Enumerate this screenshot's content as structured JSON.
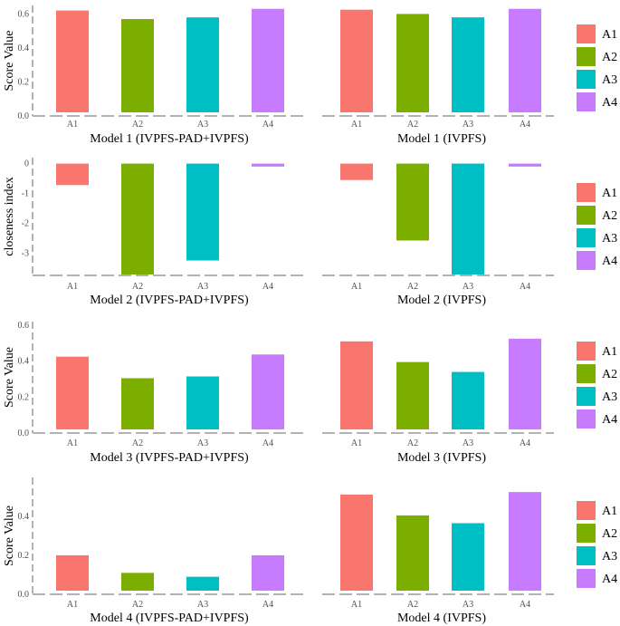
{
  "chart_data": [
    {
      "type": "bar",
      "ylabel": "Score Value",
      "ylim": [
        0,
        0.65
      ],
      "yticks": [
        "0.0",
        "0.2",
        "0.4",
        "0.6"
      ],
      "legend": [
        "A1",
        "A2",
        "A3",
        "A4"
      ],
      "legend_position": "right",
      "panels": [
        {
          "title": "Model 1 (IVPFS-PAD+IVPFS)",
          "categories": [
            "A1",
            "A2",
            "A3",
            "A4"
          ],
          "values": [
            0.62,
            0.57,
            0.58,
            0.63
          ]
        },
        {
          "title": "Model 1 (IVPFS)",
          "categories": [
            "A1",
            "A2",
            "A3",
            "A4"
          ],
          "values": [
            0.625,
            0.6,
            0.58,
            0.63
          ]
        }
      ]
    },
    {
      "type": "bar",
      "ylabel": "closeness index",
      "ylim": [
        -3.75,
        0.2
      ],
      "yticks": [
        "0",
        "-1",
        "-2",
        "-3"
      ],
      "legend": [
        "A1",
        "A2",
        "A3",
        "A4"
      ],
      "legend_position": "right",
      "panels": [
        {
          "title": "Model 2 (IVPFS-PAD+IVPFS)",
          "categories": [
            "A1",
            "A2",
            "A3",
            "A4"
          ],
          "values": [
            -0.72,
            -3.72,
            -3.25,
            -0.1
          ]
        },
        {
          "title": "Model 2 (IVPFS)",
          "categories": [
            "A1",
            "A2",
            "A3",
            "A4"
          ],
          "values": [
            -0.55,
            -2.58,
            -3.72,
            -0.1
          ]
        }
      ]
    },
    {
      "type": "bar",
      "ylabel": "Score Value",
      "ylim": [
        0,
        0.62
      ],
      "yticks": [
        "0.0",
        "0.2",
        "0.4",
        "0.6"
      ],
      "legend": [
        "A1",
        "A2",
        "A3",
        "A4"
      ],
      "legend_position": "right",
      "panels": [
        {
          "title": "Model 3 (IVPFS-PAD+IVPFS)",
          "categories": [
            "A1",
            "A2",
            "A3",
            "A4"
          ],
          "values": [
            0.425,
            0.305,
            0.315,
            0.437
          ]
        },
        {
          "title": "Model 3 (IVPFS)",
          "categories": [
            "A1",
            "A2",
            "A3",
            "A4"
          ],
          "values": [
            0.51,
            0.395,
            0.34,
            0.525
          ]
        }
      ]
    },
    {
      "type": "bar",
      "ylabel": "Score Value",
      "ylim": [
        0,
        0.6
      ],
      "yticks": [
        "0.0",
        "0.2",
        "0.4"
      ],
      "legend": [
        "A1",
        "A2",
        "A3",
        "A4"
      ],
      "legend_position": "right",
      "panels": [
        {
          "title": "Model 4 (IVPFS-PAD+IVPFS)",
          "categories": [
            "A1",
            "A2",
            "A3",
            "A4"
          ],
          "values": [
            0.2,
            0.11,
            0.09,
            0.2
          ]
        },
        {
          "title": "Model 4 (IVPFS)",
          "categories": [
            "A1",
            "A2",
            "A3",
            "A4"
          ],
          "values": [
            0.512,
            0.405,
            0.365,
            0.525
          ]
        }
      ]
    }
  ],
  "colors": [
    "#F8766D",
    "#7CAE00",
    "#00BFC4",
    "#C77CFF"
  ]
}
